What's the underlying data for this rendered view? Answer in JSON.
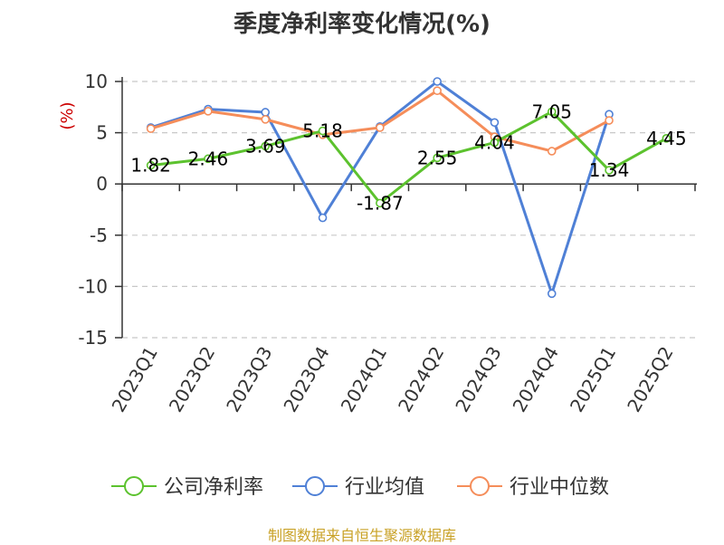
{
  "title": "季度净利率变化情况(%)",
  "source": "制图数据来自恒生聚源数据库",
  "colors": {
    "company": "#5cc22e",
    "industry_avg": "#4f80d6",
    "industry_median": "#f58d5a",
    "axis_unit": "#cc0000",
    "source": "#c9a227",
    "grid": "#c8c8c8"
  },
  "chart_data": {
    "type": "line",
    "ylabel": "(%)",
    "ylim": [
      -15,
      10
    ],
    "yticks": [
      10,
      5,
      0,
      -5,
      -10,
      -15
    ],
    "grid": "horizontal-dashed",
    "legend": "bottom",
    "categories": [
      "2023Q1",
      "2023Q2",
      "2023Q3",
      "2023Q4",
      "2024Q1",
      "2024Q2",
      "2024Q3",
      "2024Q4",
      "2025Q1",
      "2025Q2"
    ],
    "series": [
      {
        "name": "公司净利率",
        "values": [
          1.82,
          2.46,
          3.69,
          5.18,
          -1.87,
          2.55,
          4.04,
          7.05,
          1.34,
          4.45
        ],
        "labels": [
          "1.82",
          "2.46",
          "3.69",
          "5.18",
          "-1.87",
          "2.55",
          "4.04",
          "7.05",
          "1.34",
          "4.45"
        ]
      },
      {
        "name": "行业均值",
        "values": [
          5.5,
          7.3,
          7.0,
          -3.3,
          5.6,
          10.0,
          6.0,
          -10.7,
          6.8,
          null
        ]
      },
      {
        "name": "行业中位数",
        "values": [
          5.4,
          7.1,
          6.3,
          4.8,
          5.5,
          9.1,
          4.6,
          3.2,
          6.2,
          null
        ]
      }
    ]
  }
}
